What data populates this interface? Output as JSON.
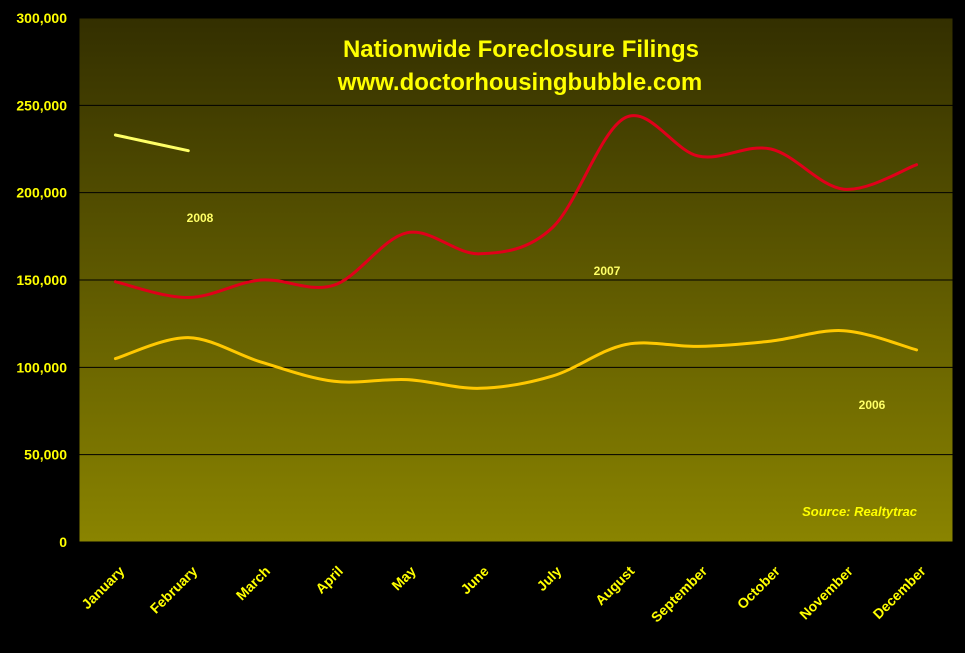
{
  "chart_data": {
    "type": "line",
    "title": "Nationwide Foreclosure Filings",
    "subtitle": "www.doctorhousingbubble.com",
    "source": "Source:  Realtytrac",
    "categories": [
      "January",
      "February",
      "March",
      "April",
      "May",
      "June",
      "July",
      "August",
      "September",
      "October",
      "November",
      "December"
    ],
    "ylim": [
      0,
      300000
    ],
    "yticks": [
      0,
      50000,
      100000,
      150000,
      200000,
      250000,
      300000
    ],
    "ytick_labels": [
      "0",
      "50,000",
      "100,000",
      "150,000",
      "200,000",
      "250,000",
      "300,000"
    ],
    "grid": true,
    "series": [
      {
        "name": "2008",
        "color": "#ffff66",
        "values": [
          233000,
          224000,
          null,
          null,
          null,
          null,
          null,
          null,
          null,
          null,
          null,
          null
        ]
      },
      {
        "name": "2007",
        "color": "#e0001a",
        "values": [
          149000,
          140000,
          150000,
          147000,
          177000,
          165000,
          180000,
          243000,
          221000,
          225000,
          202000,
          216000
        ]
      },
      {
        "name": "2006",
        "color": "#ffc800",
        "values": [
          105000,
          117000,
          103000,
          92000,
          93000,
          88000,
          95000,
          113000,
          112000,
          115000,
          121000,
          110000
        ]
      }
    ]
  }
}
